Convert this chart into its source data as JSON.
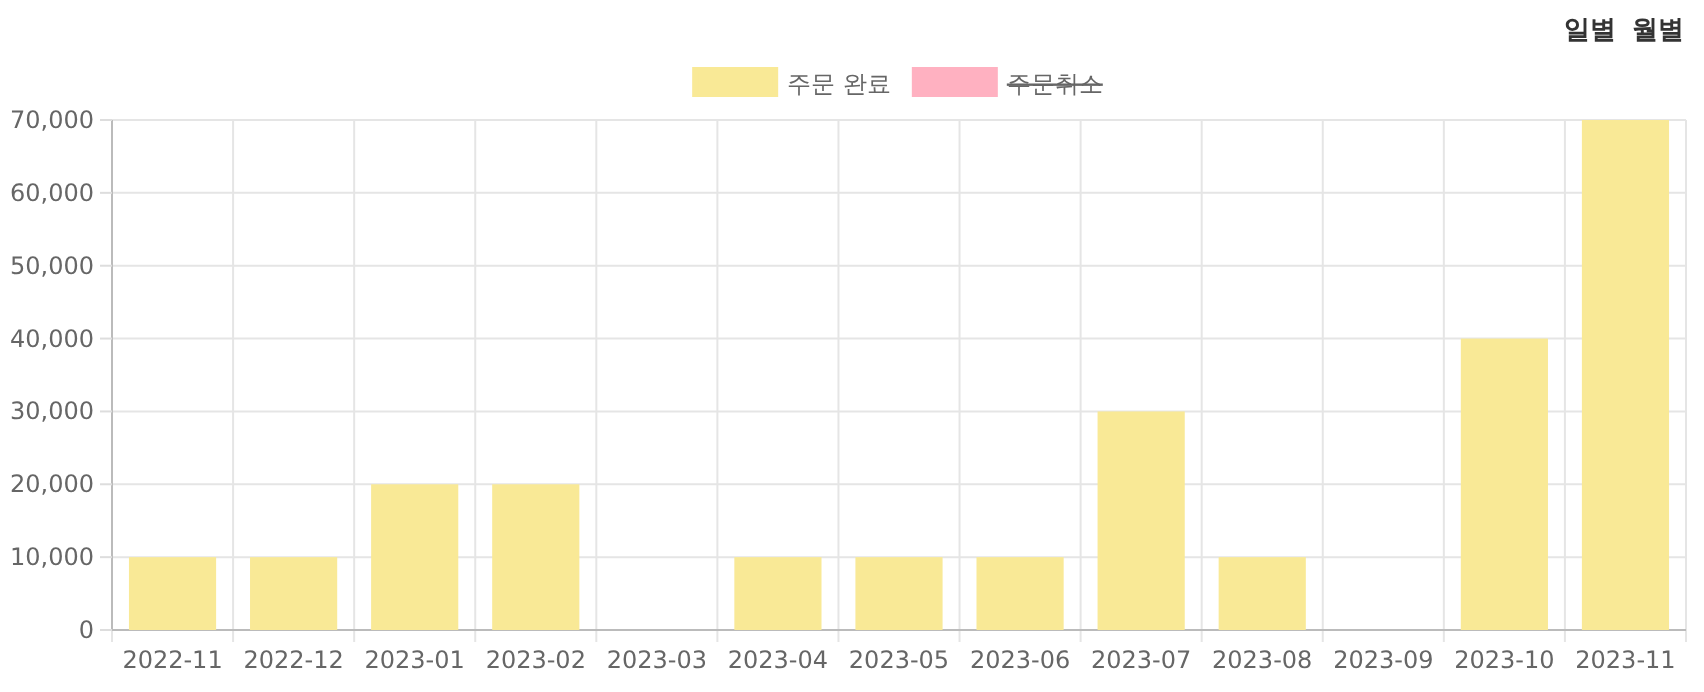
{
  "chart_data": {
    "type": "bar",
    "categories": [
      "2022-11",
      "2022-12",
      "2023-01",
      "2023-02",
      "2023-03",
      "2023-04",
      "2023-05",
      "2023-06",
      "2023-07",
      "2023-08",
      "2023-09",
      "2023-10",
      "2023-11"
    ],
    "series": [
      {
        "name": "주문 완료",
        "color": "#f9e996",
        "values": [
          10000,
          10000,
          20000,
          20000,
          0,
          10000,
          10000,
          10000,
          30000,
          10000,
          0,
          40000,
          70000
        ]
      },
      {
        "name": "주문취소",
        "color": "#ffb1c1",
        "values": [
          null,
          null,
          null,
          null,
          null,
          null,
          null,
          null,
          null,
          null,
          null,
          null,
          null
        ]
      }
    ],
    "ylim": [
      0,
      70000
    ],
    "yticks": [
      {
        "value": 0,
        "label": "0"
      },
      {
        "value": 10000,
        "label": "10,000"
      },
      {
        "value": 20000,
        "label": "20,000"
      },
      {
        "value": 30000,
        "label": "30,000"
      },
      {
        "value": 40000,
        "label": "40,000"
      },
      {
        "value": 50000,
        "label": "50,000"
      },
      {
        "value": 60000,
        "label": "60,000"
      },
      {
        "value": 70000,
        "label": "70,000"
      }
    ],
    "grid": true,
    "legend": "top",
    "annotations": [
      "일별",
      "월별"
    ]
  }
}
